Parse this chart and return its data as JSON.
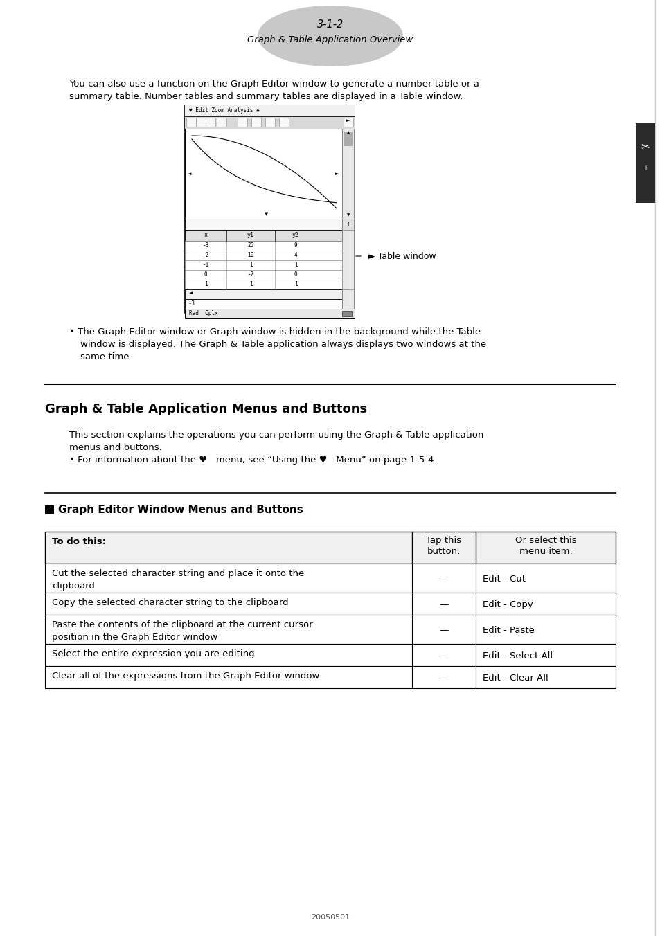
{
  "page_number": "3-1-2",
  "page_subtitle": "Graph & Table Application Overview",
  "intro_text_1": "You can also use a function on the Graph Editor window to generate a number table or a",
  "intro_text_2": "summary table. Number tables and summary tables are displayed in a Table window.",
  "table_window_label": "Table window",
  "bullet1_line1": "The Graph Editor window or Graph window is hidden in the background while the Table",
  "bullet1_line2": "window is displayed. The Graph & Table application always displays two windows at the",
  "bullet1_line3": "same time.",
  "section_title": "Graph & Table Application Menus and Buttons",
  "section_intro1": "This section explains the operations you can perform using the Graph & Table application",
  "section_intro2": "menus and buttons.",
  "section_intro3": "• For information about the ♥   menu, see “Using the ♥   Menu” on page 1-5-4.",
  "subsection_title": "Graph Editor Window Menus and Buttons",
  "table_header_col0": "To do this:",
  "table_header_col1": "Tap this\nbutton:",
  "table_header_col2": "Or select this\nmenu item:",
  "table_rows": [
    [
      "Cut the selected character string and place it onto the\nclipboard",
      "—",
      "Edit - Cut"
    ],
    [
      "Copy the selected character string to the clipboard",
      "—",
      "Edit - Copy"
    ],
    [
      "Paste the contents of the clipboard at the current cursor\nposition in the Graph Editor window",
      "—",
      "Edit - Paste"
    ],
    [
      "Select the entire expression you are editing",
      "—",
      "Edit - Select All"
    ],
    [
      "Clear all of the expressions from the Graph Editor window",
      "—",
      "Edit - Clear All"
    ]
  ],
  "footer_text": "20050501",
  "bg_color": "#ffffff",
  "ellipse_color": "#c8c8c8",
  "side_bar_color": "#2a2a2a",
  "screen_border_color": "#000000",
  "table_header_bg": "#e8e8e8"
}
